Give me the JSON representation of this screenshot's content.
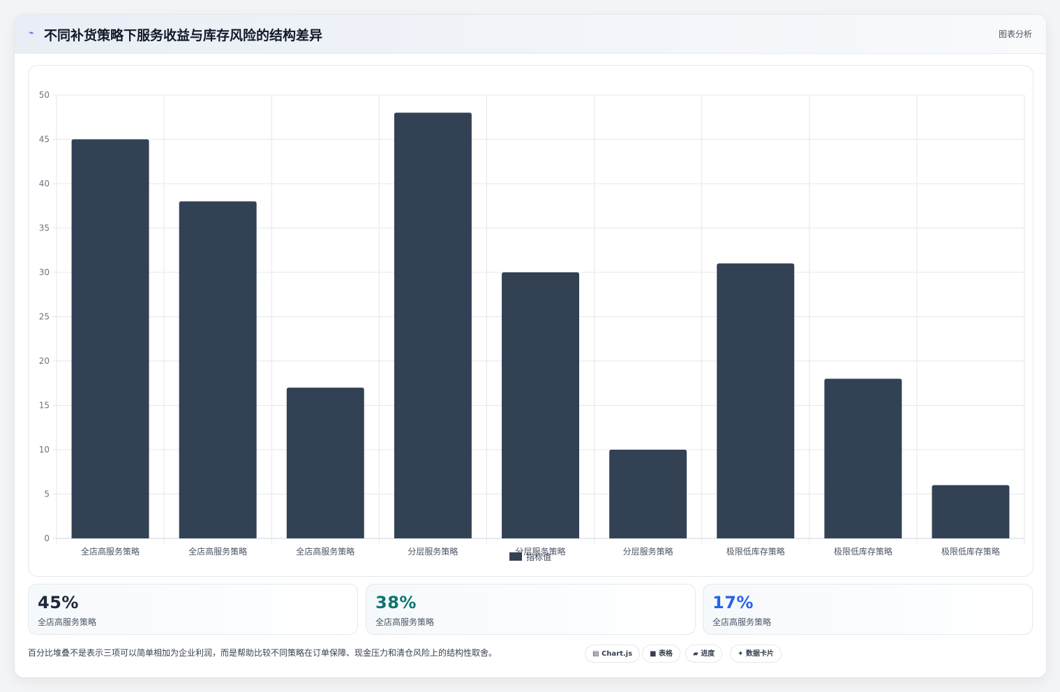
{
  "header": {
    "icon": "chart-line-icon",
    "title": "不同补货策略下服务收益与库存风险的结构差异",
    "right_label": "图表分析"
  },
  "chart_data": {
    "type": "bar",
    "categories": [
      "全店高服务策略",
      "全店高服务策略",
      "全店高服务策略",
      "分层服务策略",
      "分层服务策略",
      "分层服务策略",
      "极限低库存策略",
      "极限低库存策略",
      "极限低库存策略"
    ],
    "series": [
      {
        "name": "指标值",
        "values": [
          45,
          38,
          17,
          48,
          30,
          10,
          31,
          18,
          6
        ]
      }
    ],
    "ylim": [
      0,
      50
    ],
    "yticks": [
      0,
      5,
      10,
      15,
      20,
      25,
      30,
      35,
      40,
      45,
      50
    ],
    "grid": true,
    "legend": "bottom",
    "bar_color": "#334155"
  },
  "stats": [
    {
      "value": "45%",
      "label": "全店高服务策略",
      "color": "#1e293b"
    },
    {
      "value": "38%",
      "label": "全店高服务策略",
      "color": "#0f766e"
    },
    {
      "value": "17%",
      "label": "全店高服务策略",
      "color": "#2563eb"
    }
  ],
  "footnote": "百分比堆叠不是表示三项可以简单相加为企业利润，而是帮助比较不同策略在订单保障、现金压力和清仓风险上的结构性取舍。",
  "chips": [
    {
      "icon": "chart-icon",
      "glyph": "▤",
      "label": "Chart.js"
    },
    {
      "icon": "table-icon",
      "glyph": "■",
      "label": "表格"
    },
    {
      "icon": "progress-icon",
      "glyph": "▰",
      "label": "进度"
    },
    {
      "icon": "sparkle-icon",
      "glyph": "✦",
      "label": "数据卡片"
    }
  ]
}
